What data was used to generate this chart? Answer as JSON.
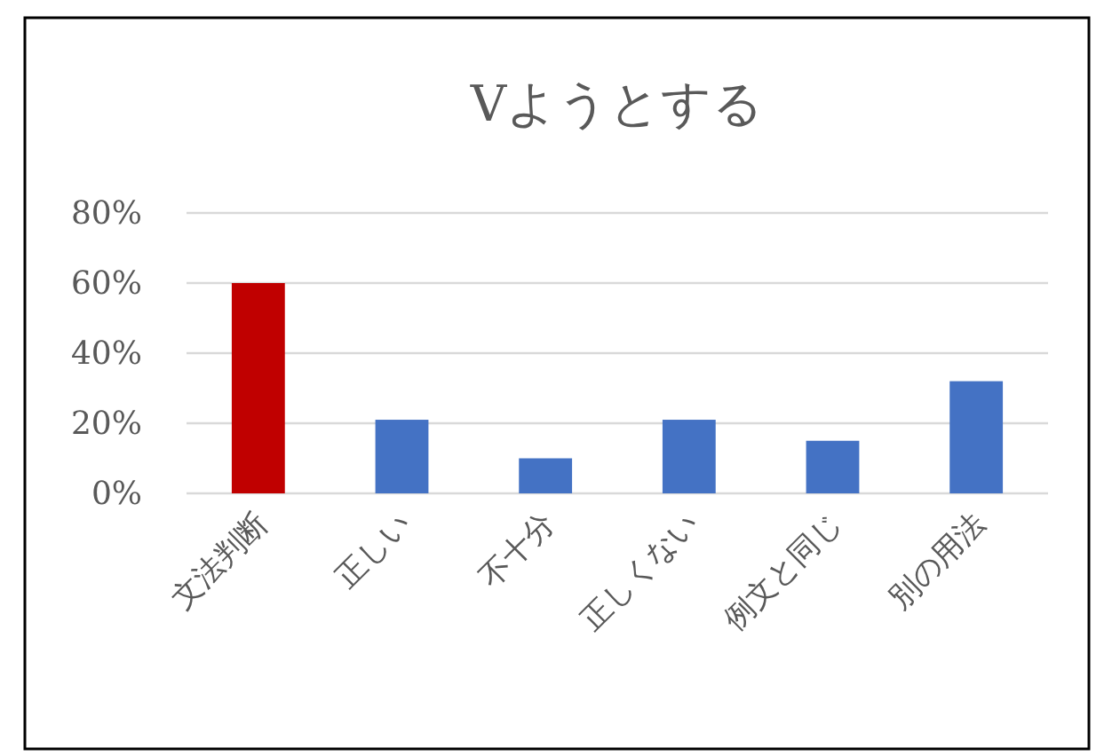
{
  "chart_data": {
    "type": "bar",
    "title": "Vようとする",
    "categories": [
      "文法判断",
      "正しい",
      "不十分",
      "正しくない",
      "例文と同じ",
      "別の用法"
    ],
    "values": [
      60,
      21,
      10,
      21,
      15,
      32
    ],
    "colors": [
      "#c00000",
      "#4472c4",
      "#4472c4",
      "#4472c4",
      "#4472c4",
      "#4472c4"
    ],
    "ylim": [
      0,
      80
    ],
    "yticks": [
      {
        "value": 0,
        "label": "0%"
      },
      {
        "value": 20,
        "label": "20%"
      },
      {
        "value": 40,
        "label": "40%"
      },
      {
        "value": 60,
        "label": "60%"
      },
      {
        "value": 80,
        "label": "80%"
      }
    ],
    "grid": "y"
  }
}
